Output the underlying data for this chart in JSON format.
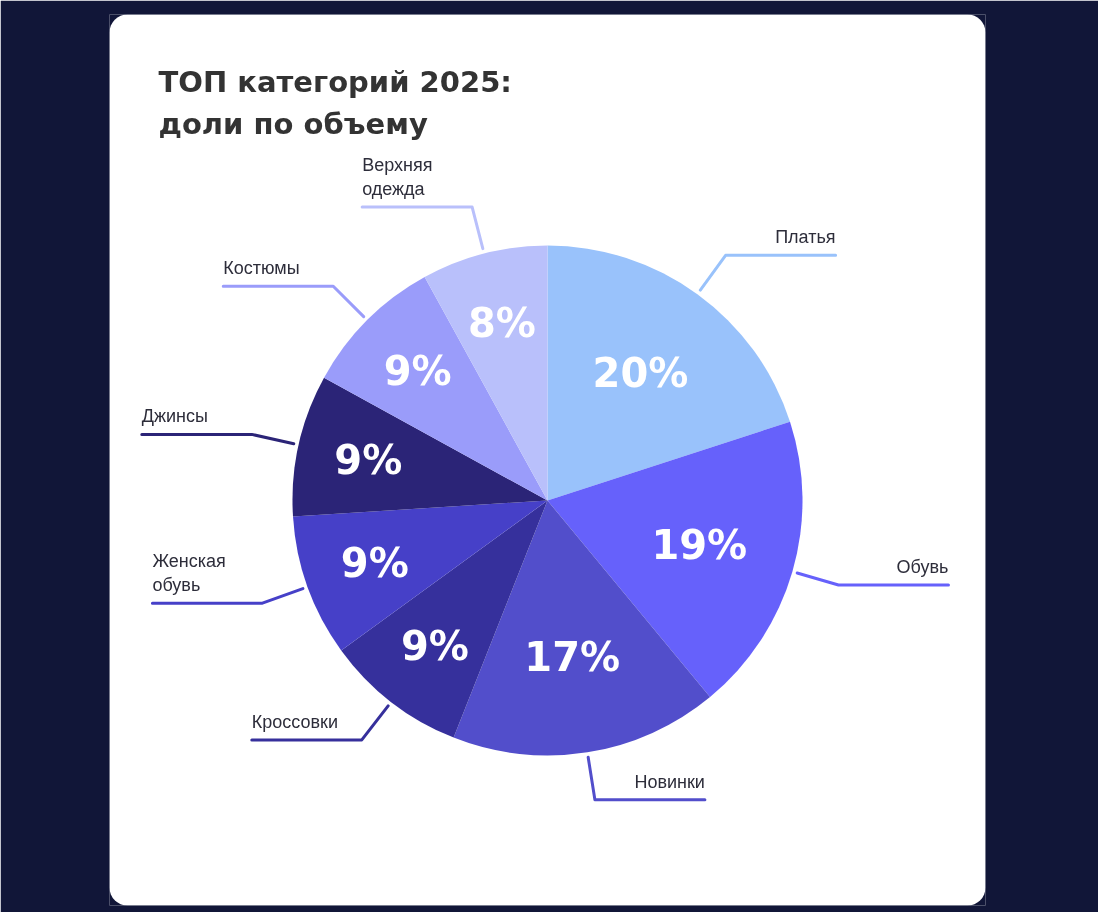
{
  "chart_data": {
    "type": "pie",
    "title": "ТОП категорий 2025: доли по объему",
    "categories": [
      "Платья",
      "Обувь",
      "Новинки",
      "Кроссовки",
      "Женская обувь",
      "Джинсы",
      "Костюмы",
      "Верхняя одежда"
    ],
    "values": [
      20,
      19,
      17,
      9,
      9,
      9,
      9,
      8
    ],
    "colors": [
      "#99c2fb",
      "#6661fb",
      "#524ecb",
      "#36309c",
      "#4640c8",
      "#2b2477",
      "#9a9cfa",
      "#b9c0fb"
    ],
    "value_labels": [
      "20%",
      "19%",
      "17%",
      "9%",
      "9%",
      "9%",
      "9%",
      "8%"
    ]
  }
}
